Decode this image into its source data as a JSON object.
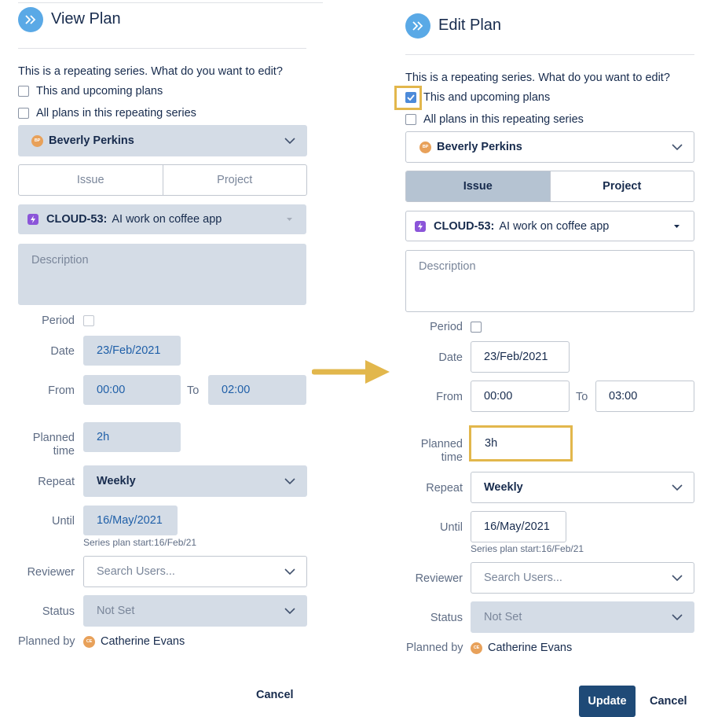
{
  "left": {
    "title": "View Plan",
    "question": "This is a repeating series. What do you want to edit?",
    "option_upcoming": "This and upcoming plans",
    "option_all": "All plans in this repeating series",
    "assignee": {
      "initials": "BP",
      "name": "Beverly Perkins"
    },
    "tabs": {
      "issue": "Issue",
      "project": "Project"
    },
    "issue": {
      "key": "CLOUD-53:",
      "summary": "AI work on coffee app"
    },
    "description_placeholder": "Description",
    "labels": {
      "period": "Period",
      "date": "Date",
      "from": "From",
      "to": "To",
      "planned_line1": "Planned",
      "planned_line2": "time",
      "repeat": "Repeat",
      "until": "Until",
      "reviewer": "Reviewer",
      "status": "Status",
      "planned_by": "Planned by"
    },
    "values": {
      "date": "23/Feb/2021",
      "from": "00:00",
      "to": "02:00",
      "planned_time": "2h",
      "repeat": "Weekly",
      "until": "16/May/2021",
      "series_start": "Series plan start:16/Feb/21",
      "reviewer_placeholder": "Search Users...",
      "status": "Not Set"
    },
    "planner": {
      "initials": "CE",
      "name": "Catherine Evans"
    },
    "cancel": "Cancel"
  },
  "right": {
    "title": "Edit Plan",
    "question": "This is a repeating series. What do you want to edit?",
    "option_upcoming": "This and upcoming plans",
    "option_upcoming_checked": true,
    "option_all": "All plans in this repeating series",
    "assignee": {
      "initials": "BP",
      "name": "Beverly Perkins"
    },
    "tabs": {
      "issue": "Issue",
      "project": "Project",
      "active": "issue"
    },
    "issue": {
      "key": "CLOUD-53:",
      "summary": "AI work on coffee app"
    },
    "description_placeholder": "Description",
    "labels": {
      "period": "Period",
      "date": "Date",
      "from": "From",
      "to": "To",
      "planned_line1": "Planned",
      "planned_line2": "time",
      "repeat": "Repeat",
      "until": "Until",
      "reviewer": "Reviewer",
      "status": "Status",
      "planned_by": "Planned by"
    },
    "values": {
      "date": "23/Feb/2021",
      "from": "00:00",
      "to": "03:00",
      "planned_time": "3h",
      "repeat": "Weekly",
      "until": "16/May/2021",
      "series_start": "Series plan start:16/Feb/21",
      "reviewer_placeholder": "Search Users...",
      "status": "Not Set"
    },
    "planner": {
      "initials": "CE",
      "name": "Catherine Evans"
    },
    "update": "Update",
    "cancel": "Cancel"
  },
  "colors": {
    "accent": "#5aa9e6",
    "highlight": "#e2b74c",
    "readonly_bg": "#d4dce6",
    "update_button": "#1f4a77",
    "issue_icon": "#8b55d9",
    "avatar": "#e8a15a"
  },
  "icons": {
    "header": "double-chevron-right-icon",
    "dropdown": "chevron-down-icon",
    "issue": "lightning-icon",
    "arrow": "right-arrow-icon"
  }
}
